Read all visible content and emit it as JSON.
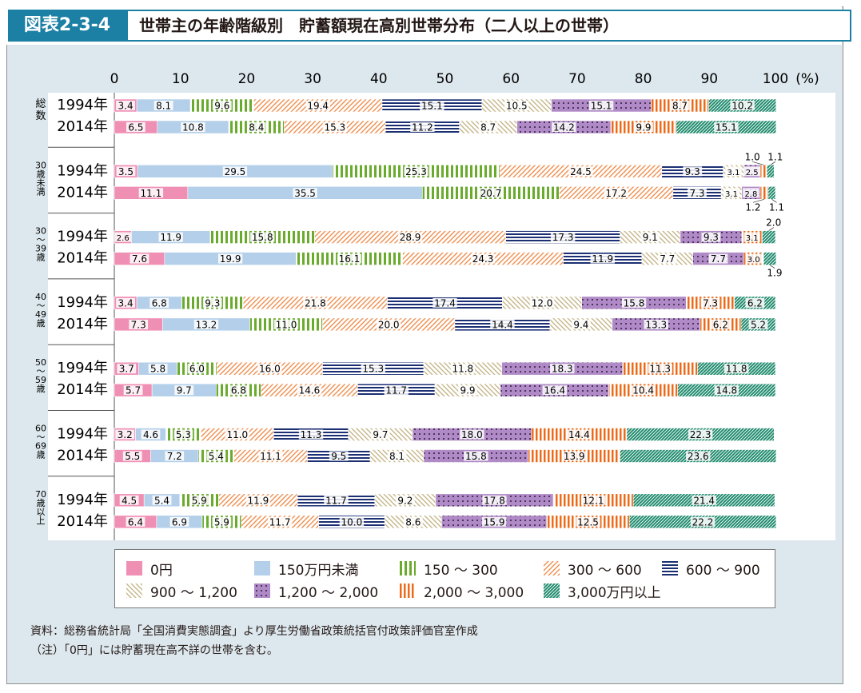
{
  "header": {
    "tag": "図表2-3-4",
    "title": "世帯主の年齢階級別　貯蓄額現在高別世帯分布（二人以上の世帯）"
  },
  "chart_data": {
    "type": "bar",
    "orientation": "horizontal",
    "stacked": true,
    "xlim": [
      0,
      100
    ],
    "x_ticks": [
      "0",
      "10",
      "20",
      "30",
      "40",
      "50",
      "60",
      "70",
      "80",
      "90",
      "100"
    ],
    "x_unit": "(%)",
    "series": [
      {
        "name": "0円",
        "color": "#f08fb4",
        "pattern": "solid"
      },
      {
        "name": "150万円未満",
        "color": "#b3cfe9",
        "pattern": "solid"
      },
      {
        "name": "150～300",
        "color": "#6aab2e",
        "pattern": "vertical-stripes"
      },
      {
        "name": "300～600",
        "color": "#ef8e4e",
        "pattern": "diagonal"
      },
      {
        "name": "600～900",
        "color": "#1c2f73",
        "pattern": "horizontal-stripes"
      },
      {
        "name": "900～1,200",
        "color": "#c4b587",
        "pattern": "diagonal-back"
      },
      {
        "name": "1,200～2,000",
        "color": "#b08ac7",
        "pattern": "dots"
      },
      {
        "name": "2,000～3,000",
        "color": "#eb6b1b",
        "pattern": "vertical-stripes-thick"
      },
      {
        "name": "3,000万円以上",
        "color": "#1e8a6c",
        "pattern": "diagonal-dense"
      }
    ],
    "groups": [
      {
        "label": [
          "総",
          "数"
        ],
        "rows": [
          {
            "year": "1994年",
            "values": [
              3.4,
              8.1,
              9.6,
              19.4,
              15.1,
              10.5,
              15.1,
              8.7,
              10.2
            ]
          },
          {
            "year": "2014年",
            "values": [
              6.5,
              10.8,
              8.4,
              15.3,
              11.2,
              8.7,
              14.2,
              9.9,
              15.1
            ]
          }
        ]
      },
      {
        "label": [
          "30",
          "歳",
          "未",
          "満"
        ],
        "rows": [
          {
            "year": "1994年",
            "values": [
              3.5,
              29.5,
              25.3,
              24.5,
              9.3,
              3.1,
              2.5,
              1.0,
              1.1
            ]
          },
          {
            "year": "2014年",
            "values": [
              11.1,
              35.5,
              20.7,
              17.2,
              7.3,
              3.1,
              2.8,
              1.2,
              1.1
            ]
          }
        ]
      },
      {
        "label": [
          "30",
          "～",
          "39",
          "歳"
        ],
        "rows": [
          {
            "year": "1994年",
            "values": [
              2.6,
              11.9,
              15.8,
              28.9,
              17.3,
              9.1,
              9.3,
              3.1,
              2.0
            ]
          },
          {
            "year": "2014年",
            "values": [
              7.6,
              19.9,
              16.1,
              24.3,
              11.9,
              7.7,
              7.7,
              3.0,
              1.9
            ]
          }
        ]
      },
      {
        "label": [
          "40",
          "～",
          "49",
          "歳"
        ],
        "rows": [
          {
            "year": "1994年",
            "values": [
              3.4,
              6.8,
              9.3,
              21.8,
              17.4,
              12.0,
              15.8,
              7.3,
              6.2
            ]
          },
          {
            "year": "2014年",
            "values": [
              7.3,
              13.2,
              11.0,
              20.0,
              14.4,
              9.4,
              13.3,
              6.2,
              5.2
            ]
          }
        ]
      },
      {
        "label": [
          "50",
          "～",
          "59",
          "歳"
        ],
        "rows": [
          {
            "year": "1994年",
            "values": [
              3.7,
              5.8,
              6.0,
              16.0,
              15.3,
              11.8,
              18.3,
              11.3,
              11.8
            ]
          },
          {
            "year": "2014年",
            "values": [
              5.7,
              9.7,
              6.8,
              14.6,
              11.7,
              9.9,
              16.4,
              10.4,
              14.8
            ]
          }
        ]
      },
      {
        "label": [
          "60",
          "～",
          "69",
          "歳"
        ],
        "rows": [
          {
            "year": "1994年",
            "values": [
              3.2,
              4.6,
              5.3,
              11.0,
              11.3,
              9.7,
              18.0,
              14.4,
              22.3
            ]
          },
          {
            "year": "2014年",
            "values": [
              5.5,
              7.2,
              5.4,
              11.1,
              9.5,
              8.1,
              15.8,
              13.9,
              23.6
            ]
          }
        ]
      },
      {
        "label": [
          "70",
          "歳",
          "以",
          "上"
        ],
        "rows": [
          {
            "year": "1994年",
            "values": [
              4.5,
              5.4,
              5.9,
              11.9,
              11.7,
              9.2,
              17.8,
              12.1,
              21.4
            ]
          },
          {
            "year": "2014年",
            "values": [
              6.4,
              6.9,
              5.9,
              11.7,
              10.0,
              8.6,
              15.9,
              12.5,
              22.2
            ]
          }
        ]
      }
    ]
  },
  "legend": {
    "items": [
      "0円",
      "150万円未満",
      "150 ～ 300",
      "300 ～ 600",
      "600 ～ 900",
      "900 ～ 1,200",
      "1,200 ～ 2,000",
      "2,000 ～ 3,000",
      "3,000万円以上"
    ]
  },
  "notes": {
    "source": "資料：総務省統計局「全国消費実態調査」より厚生労働省政策統括官付政策評価官室作成",
    "note": "（注）「0円」には貯蓄現在高不詳の世帯を含む。"
  }
}
